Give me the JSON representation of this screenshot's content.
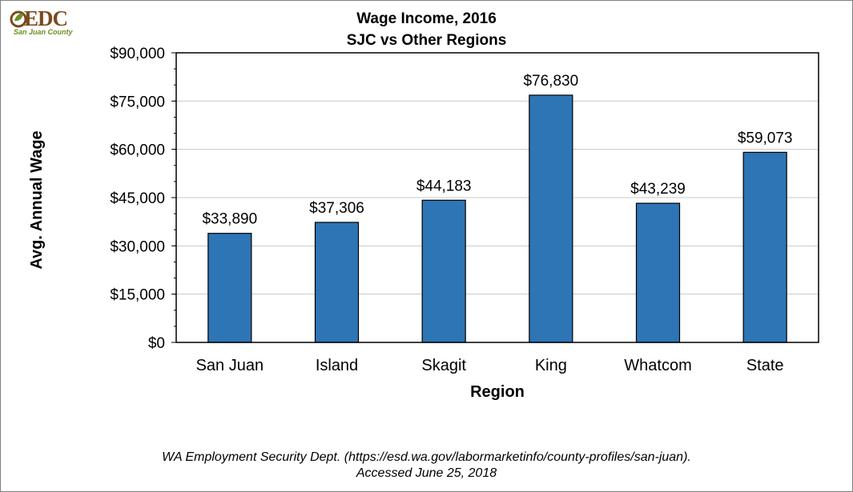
{
  "logo": {
    "name": "EDC",
    "tagline": "San Juan County"
  },
  "chart_data": {
    "type": "bar",
    "title": "Wage Income, 2016",
    "subtitle": "SJC vs Other Regions",
    "xlabel": "Region",
    "ylabel": "Avg. Annual Wage",
    "categories": [
      "San Juan",
      "Island",
      "Skagit",
      "King",
      "Whatcom",
      "State"
    ],
    "values": [
      33890,
      37306,
      44183,
      76830,
      43239,
      59073
    ],
    "data_labels": [
      "$33,890",
      "$37,306",
      "$44,183",
      "$76,830",
      "$43,239",
      "$59,073"
    ],
    "ylim": [
      0,
      90000
    ],
    "yticks": [
      0,
      15000,
      30000,
      45000,
      60000,
      75000,
      90000
    ],
    "ytick_labels": [
      "$0",
      "$15,000",
      "$30,000",
      "$45,000",
      "$60,000",
      "$75,000",
      "$90,000"
    ],
    "grid": true,
    "bar_color": "#2e75b6"
  },
  "source": {
    "line1": "WA Employment Security Dept. (https://esd.wa.gov/labormarketinfo/county-profiles/san-juan).",
    "line2": "Accessed June 25, 2018"
  }
}
